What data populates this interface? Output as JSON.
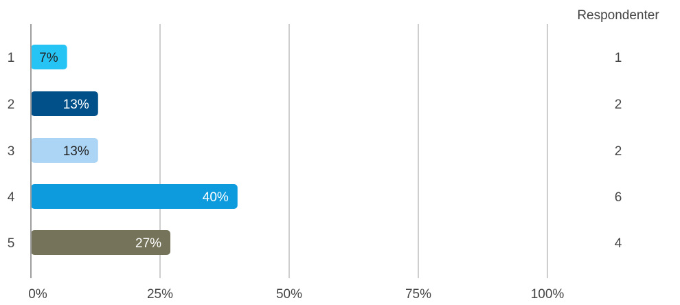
{
  "chart_data": {
    "type": "bar",
    "orientation": "horizontal",
    "categories": [
      "1",
      "2",
      "3",
      "4",
      "5"
    ],
    "values": [
      7,
      13,
      13,
      40,
      27
    ],
    "value_labels": [
      "7%",
      "13%",
      "13%",
      "40%",
      "27%"
    ],
    "respondents_header": "Respondenter",
    "respondents": [
      "1",
      "2",
      "2",
      "6",
      "4"
    ],
    "colors": [
      "#26c4f5",
      "#01508a",
      "#acd5f5",
      "#0d9bde",
      "#757359"
    ],
    "label_colors": [
      "#222222",
      "#ffffff",
      "#222222",
      "#ffffff",
      "#ffffff"
    ],
    "xlim": [
      0,
      100
    ],
    "xticks": [
      0,
      25,
      50,
      75,
      100
    ],
    "xtick_labels": [
      "0%",
      "25%",
      "50%",
      "75%",
      "100%"
    ],
    "grid": true
  }
}
